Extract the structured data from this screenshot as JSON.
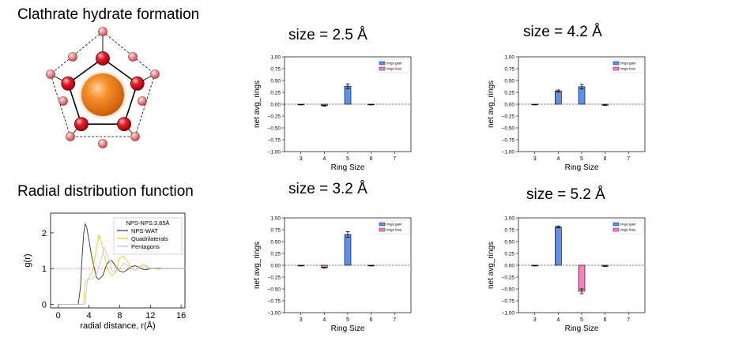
{
  "headings": {
    "clathrate": "Clathrate hydrate formation",
    "rdf": "Radial distribution function"
  },
  "colors": {
    "gain": "#5b8ff0",
    "loss": "#f77fbe",
    "sphere": "#f07a1a",
    "atom": "#e8202a",
    "atom_light": "#f08080",
    "nps_wat": "#333333",
    "quad": "#ffc000",
    "pent": "#a8c8f0",
    "ref_line": "#f08070"
  },
  "chart_data": [
    {
      "type": "line",
      "panel": "rdf",
      "xlabel": "radial distance, r(Å)",
      "ylabel": "g(r)",
      "xlim": [
        -1,
        16.5
      ],
      "ylim": [
        -0.1,
        2.55
      ],
      "xticks": [
        0,
        4,
        8,
        12,
        16
      ],
      "yticks": [
        0,
        1,
        2
      ],
      "legend_title": "NPS-NPS:3.85Å",
      "reference_line": 1,
      "series": [
        {
          "name": "NPS-WAT",
          "color": "#333333",
          "x": [
            0,
            2.6,
            2.9,
            3.1,
            3.3,
            3.5,
            3.7,
            4.0,
            4.3,
            4.7,
            5.0,
            5.3,
            5.8,
            6.2,
            6.6,
            7.0,
            7.5,
            8.0,
            8.5,
            9.0,
            9.5,
            10.0,
            10.5,
            11.0,
            11.5,
            12.0,
            13.0,
            14.0,
            15.0,
            16.5
          ],
          "y": [
            0,
            0,
            0.5,
            1.3,
            1.95,
            2.25,
            2.15,
            1.8,
            1.4,
            1.0,
            0.75,
            0.7,
            0.8,
            1.05,
            1.2,
            1.22,
            1.05,
            0.93,
            0.9,
            0.97,
            1.05,
            1.08,
            1.04,
            0.98,
            0.97,
            1.0,
            1.01,
            1.0,
            1.0,
            1.0
          ]
        },
        {
          "name": "Quadrilaterals",
          "color": "#ffc000",
          "x": [
            0,
            3.3,
            3.5,
            4.0,
            4.5,
            5.0,
            5.3,
            5.6,
            6.0,
            6.5,
            7.0,
            7.5,
            8.0,
            8.5,
            9.0,
            9.5,
            10.0,
            10.5,
            11.0,
            11.5,
            12.0,
            13.0,
            14.0,
            15.0,
            16.5
          ],
          "y": [
            0,
            0,
            0.6,
            0.75,
            0.95,
            1.6,
            1.95,
            1.75,
            1.35,
            0.95,
            0.8,
            0.9,
            1.3,
            1.35,
            1.2,
            1.0,
            0.95,
            1.05,
            1.12,
            1.08,
            1.0,
            0.98,
            1.01,
            1.0,
            1.0
          ]
        },
        {
          "name": "Pentagons",
          "color": "#a8c8f0",
          "x": [
            0,
            3.5,
            3.8,
            4.5,
            5.0,
            5.5,
            6.0,
            6.5,
            7.0,
            7.5,
            8.0,
            8.5,
            9.0,
            9.5,
            10.0,
            10.5,
            11.0,
            11.5,
            12.0,
            13.0,
            14.0,
            15.0,
            16.5
          ],
          "y": [
            0,
            0,
            0.7,
            0.72,
            0.85,
            1.2,
            1.6,
            1.3,
            0.95,
            0.9,
            1.0,
            1.15,
            1.1,
            1.0,
            0.95,
            1.02,
            1.08,
            1.05,
            1.0,
            1.0,
            1.0,
            1.0,
            1.0
          ]
        }
      ]
    },
    {
      "type": "bar",
      "panel": "tl",
      "title": "size = 2.5 Å",
      "xlabel": "Ring Size",
      "ylabel": "net avg_rings",
      "categories": [
        3,
        4,
        5,
        6,
        7
      ],
      "ylim": [
        -1.0,
        1.0
      ],
      "yticks": [
        "1.00",
        "0.75",
        "0.50",
        "0.25",
        "0.00",
        "−0.25",
        "−0.50",
        "−0.75",
        "−1.00"
      ],
      "legend": [
        "rings gain",
        "rings loss"
      ],
      "series": [
        {
          "name": "rings gain",
          "values": [
            0,
            0,
            0.38,
            0,
            0
          ],
          "errors": [
            0,
            0,
            0.05,
            0,
            0
          ]
        },
        {
          "name": "rings loss",
          "values": [
            -0.01,
            -0.03,
            0,
            -0.01,
            0
          ],
          "errors": [
            0.005,
            0.01,
            0,
            0.005,
            0
          ]
        }
      ]
    },
    {
      "type": "bar",
      "panel": "tr",
      "title": "size = 4.2 Å",
      "xlabel": "Ring Size",
      "ylabel": "net avg_rings",
      "categories": [
        3,
        4,
        5,
        6,
        7
      ],
      "ylim": [
        -1.0,
        1.0
      ],
      "yticks": [
        "1.00",
        "0.75",
        "0.50",
        "0.25",
        "0.00",
        "−0.25",
        "−0.50",
        "−0.75",
        "−1.00"
      ],
      "legend": [
        "rings gain",
        "rings loss"
      ],
      "series": [
        {
          "name": "rings gain",
          "values": [
            0,
            0.28,
            0.37,
            0,
            0
          ],
          "errors": [
            0,
            0.02,
            0.05,
            0,
            0
          ]
        },
        {
          "name": "rings loss",
          "values": [
            -0.01,
            0,
            0,
            -0.02,
            0
          ],
          "errors": [
            0.005,
            0,
            0,
            0.005,
            0
          ]
        }
      ]
    },
    {
      "type": "bar",
      "panel": "bl",
      "title": "size = 3.2 Å",
      "xlabel": "Ring Size",
      "ylabel": "net avg_rings",
      "categories": [
        3,
        4,
        5,
        6,
        7
      ],
      "ylim": [
        -1.0,
        1.0
      ],
      "yticks": [
        "1.00",
        "0.75",
        "0.50",
        "0.25",
        "0.00",
        "−0.25",
        "−0.50",
        "−0.75",
        "−1.00"
      ],
      "legend": [
        "rings gain",
        "rings loss"
      ],
      "series": [
        {
          "name": "rings gain",
          "values": [
            0,
            0,
            0.65,
            0,
            0
          ],
          "errors": [
            0,
            0,
            0.06,
            0,
            0
          ]
        },
        {
          "name": "rings loss",
          "values": [
            -0.01,
            -0.05,
            0,
            -0.01,
            0
          ],
          "errors": [
            0.005,
            0.01,
            0,
            0.005,
            0
          ]
        }
      ]
    },
    {
      "type": "bar",
      "panel": "br",
      "title": "size = 5.2 Å",
      "xlabel": "Ring Size",
      "ylabel": "net avg_rings",
      "categories": [
        3,
        4,
        5,
        6,
        7
      ],
      "ylim": [
        -1.0,
        1.0
      ],
      "yticks": [
        "1.00",
        "0.75",
        "0.50",
        "0.25",
        "0.00",
        "−0.25",
        "−0.50",
        "−0.75",
        "−1.00"
      ],
      "legend": [
        "rings gain",
        "rings loss"
      ],
      "series": [
        {
          "name": "rings gain",
          "values": [
            0,
            0.81,
            0,
            0,
            0
          ],
          "errors": [
            0,
            0.02,
            0,
            0,
            0
          ]
        },
        {
          "name": "rings loss",
          "values": [
            -0.01,
            0,
            -0.55,
            -0.02,
            0
          ],
          "errors": [
            0.005,
            0,
            0.05,
            0.005,
            0
          ]
        }
      ]
    }
  ]
}
